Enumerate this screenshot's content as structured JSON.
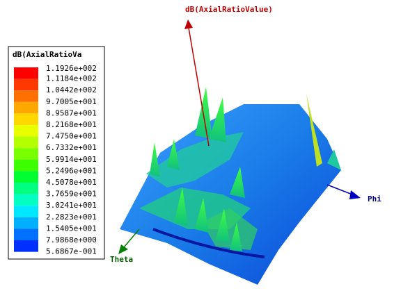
{
  "legend": {
    "title": "dB(AxialRatioVa",
    "labels": [
      "1.1926e+002",
      "1.1184e+002",
      "1.0442e+002",
      "9.7005e+001",
      "8.9587e+001",
      "8.2168e+001",
      "7.4750e+001",
      "6.7332e+001",
      "5.9914e+001",
      "5.2496e+001",
      "4.5078e+001",
      "3.7659e+001",
      "3.0241e+001",
      "2.2823e+001",
      "1.5405e+001",
      "7.9868e+000",
      "5.6867e-001"
    ],
    "colors": [
      "#ff0000",
      "#ff3800",
      "#ff7000",
      "#ffa800",
      "#ffd800",
      "#e8ff00",
      "#b4ff00",
      "#78ff00",
      "#3cff00",
      "#00ff30",
      "#00ff80",
      "#00ffc0",
      "#00e8ff",
      "#00b0ff",
      "#0070ff",
      "#0030ff"
    ]
  },
  "axes": {
    "z": "dB(AxialRatioValue)",
    "x": "Phi",
    "y": "Theta"
  }
}
